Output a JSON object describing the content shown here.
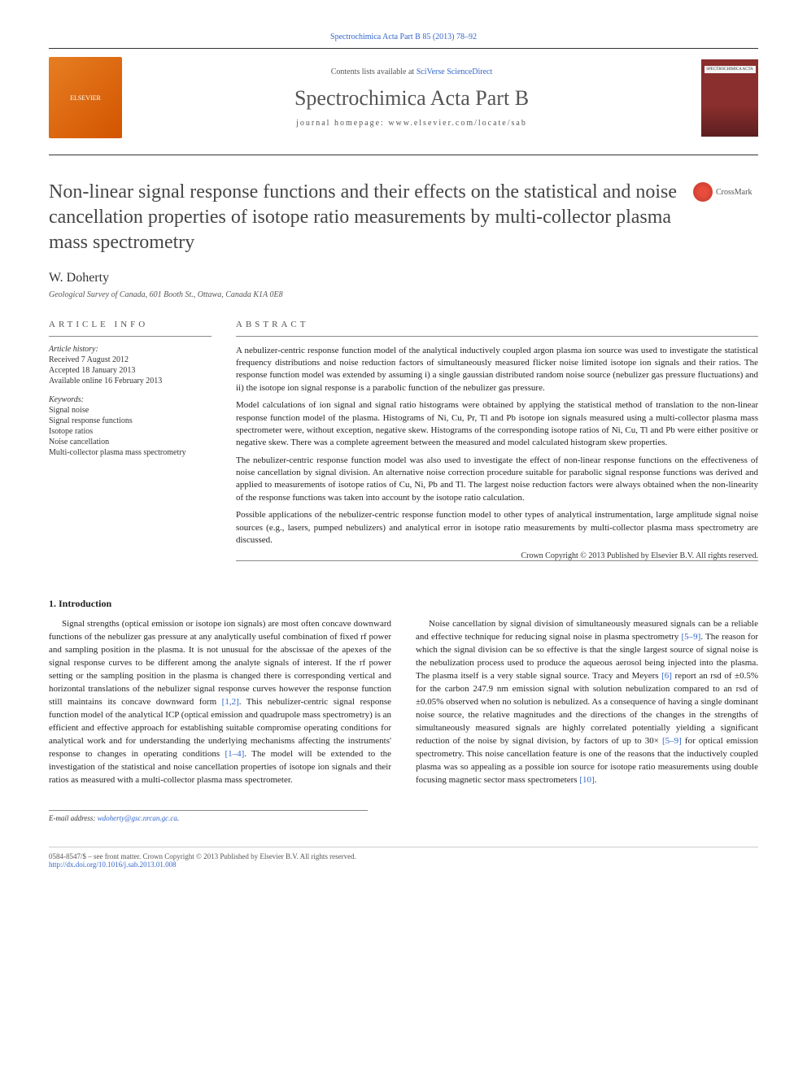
{
  "header": {
    "top_link": "Spectrochimica Acta Part B 85 (2013) 78–92",
    "contents_prefix": "Contents lists available at ",
    "contents_link": "SciVerse ScienceDirect",
    "journal_name": "Spectrochimica Acta Part B",
    "homepage_label": "journal homepage: www.elsevier.com/locate/sab",
    "elsevier_label": "ELSEVIER",
    "cover_text": "SPECTROCHIMICA ACTA",
    "crossmark": "CrossMark"
  },
  "article": {
    "title": "Non-linear signal response functions and their effects on the statistical and noise cancellation properties of isotope ratio measurements by multi-collector plasma mass spectrometry",
    "author": "W. Doherty",
    "affiliation": "Geological Survey of Canada, 601 Booth St., Ottawa, Canada K1A 0E8"
  },
  "info": {
    "heading": "ARTICLE INFO",
    "history_label": "Article history:",
    "received": "Received 7 August 2012",
    "accepted": "Accepted 18 January 2013",
    "online": "Available online 16 February 2013",
    "keywords_label": "Keywords:",
    "keywords": [
      "Signal noise",
      "Signal response functions",
      "Isotope ratios",
      "Noise cancellation",
      "Multi-collector plasma mass spectrometry"
    ]
  },
  "abstract": {
    "heading": "ABSTRACT",
    "p1": "A nebulizer-centric response function model of the analytical inductively coupled argon plasma ion source was used to investigate the statistical frequency distributions and noise reduction factors of simultaneously measured flicker noise limited isotope ion signals and their ratios. The response function model was extended by assuming i) a single gaussian distributed random noise source (nebulizer gas pressure fluctuations) and ii) the isotope ion signal response is a parabolic function of the nebulizer gas pressure.",
    "p2": "Model calculations of ion signal and signal ratio histograms were obtained by applying the statistical method of translation to the non-linear response function model of the plasma. Histograms of Ni, Cu, Pr, Tl and Pb isotope ion signals measured using a multi-collector plasma mass spectrometer were, without exception, negative skew. Histograms of the corresponding isotope ratios of Ni, Cu, Tl and Pb were either positive or negative skew. There was a complete agreement between the measured and model calculated histogram skew properties.",
    "p3": "The nebulizer-centric response function model was also used to investigate the effect of non-linear response functions on the effectiveness of noise cancellation by signal division. An alternative noise correction procedure suitable for parabolic signal response functions was derived and applied to measurements of isotope ratios of Cu, Ni, Pb and Tl. The largest noise reduction factors were always obtained when the non-linearity of the response functions was taken into account by the isotope ratio calculation.",
    "p4": "Possible applications of the nebulizer-centric response function model to other types of analytical instrumentation, large amplitude signal noise sources (e.g., lasers, pumped nebulizers) and analytical error in isotope ratio measurements by multi-collector plasma mass spectrometry are discussed.",
    "copyright": "Crown Copyright © 2013 Published by Elsevier B.V. All rights reserved."
  },
  "body": {
    "heading": "1. Introduction",
    "p1a": "Signal strengths (optical emission or isotope ion signals) are most often concave downward functions of the nebulizer gas pressure at any analytically useful combination of fixed rf power and sampling position in the plasma. It is not unusual for the abscissae of the apexes of the signal response curves to be different among the analyte signals of interest. If the rf power setting or the sampling position in the plasma is changed there is corresponding vertical and horizontal translations of the nebulizer signal response curves however the response function still maintains its concave downward form ",
    "ref1": "[1,2]",
    "p1b": ". This nebulizer-centric signal response function model of the analytical ICP (optical emission and quadrupole mass spectrometry) is an efficient and effective approach for establishing suitable compromise operating conditions for analytical work and for understanding the underlying mechanisms affecting the instruments' response to changes in operating conditions ",
    "ref2": "[1–4]",
    "p1c": ". The model will be extended to the investigation of the statistical and noise cancellation properties of isotope ion signals and their ratios as measured with a multi-collector plasma mass spectrometer.",
    "p2a": "Noise cancellation by signal division of simultaneously measured signals can be a reliable and effective technique for reducing signal noise in plasma spectrometry ",
    "ref3": "[5–9]",
    "p2b": ". The reason for which the signal division can be so effective is that the single largest source of signal noise is the nebulization process used to produce the aqueous aerosol being injected into the plasma. The plasma itself is a very stable signal source. Tracy and Meyers ",
    "ref4": "[6]",
    "p2c": " report an rsd of ±0.5% for the carbon 247.9 nm emission signal with solution nebulization compared to an rsd of ±0.05% observed when no solution is nebulized. As a consequence of having a single dominant noise source, the relative magnitudes and the directions of the changes in the strengths of simultaneously measured signals are highly correlated potentially yielding a significant reduction of the noise by signal division, by factors of up to 30× ",
    "ref5": "[5–9]",
    "p2d": " for optical emission spectrometry. This noise cancellation feature is one of the reasons that the inductively coupled plasma was so appealing as a possible ion source for isotope ratio measurements using double focusing magnetic sector mass spectrometers ",
    "ref6": "[10]",
    "p2e": "."
  },
  "footer": {
    "email_label": "E-mail address: ",
    "email": "wdoherty@gsc.nrcan.gc.ca",
    "issn": "0584-8547/$ – see front matter. Crown Copyright © 2013 Published by Elsevier B.V. All rights reserved.",
    "doi": "http://dx.doi.org/10.1016/j.sab.2013.01.008"
  },
  "colors": {
    "link": "#3366cc",
    "text": "#222222",
    "heading": "#464646",
    "elsevier_bg": "#e67e22",
    "cover_bg": "#8b2e2e"
  }
}
